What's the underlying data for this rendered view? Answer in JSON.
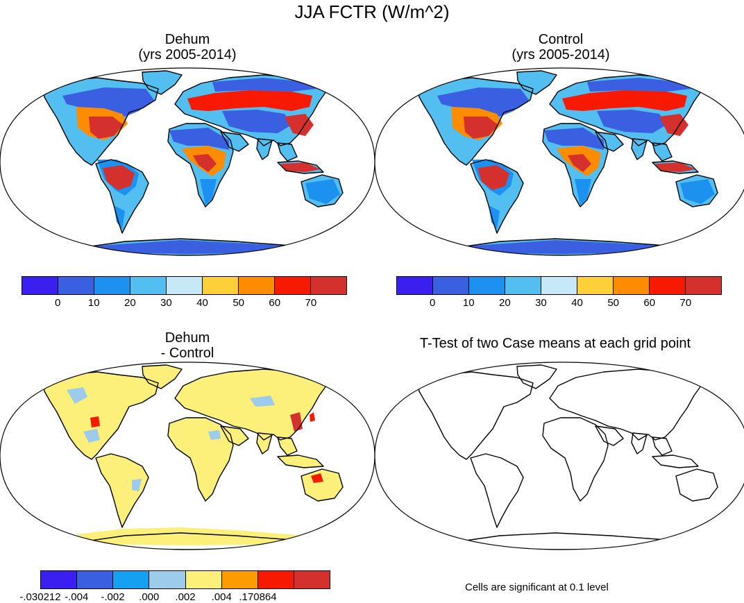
{
  "title": "JJA FCTR (W/m^2)",
  "panels": [
    {
      "id": "dehum",
      "title_line1": "Dehum",
      "title_line2": "(yrs 2005-2014)",
      "style": "absolute"
    },
    {
      "id": "control",
      "title_line1": "Control",
      "title_line2": "(yrs 2005-2014)",
      "style": "absolute"
    },
    {
      "id": "difference",
      "title_line1": "Dehum",
      "title_line2": "- Control",
      "style": "difference"
    },
    {
      "id": "ttest",
      "title_line1": "T-Test of two Case means at each grid point",
      "style": "outline"
    }
  ],
  "colorbar_absolute": {
    "colors": [
      "#3a1ff0",
      "#3a5fe0",
      "#1c91f0",
      "#52bff0",
      "#c7e8f7",
      "#fdd03a",
      "#fd8c00",
      "#f81a00",
      "#d4302e"
    ],
    "labels": [
      "0",
      "10",
      "20",
      "30",
      "40",
      "50",
      "60",
      "70"
    ]
  },
  "colorbar_difference": {
    "colors": [
      "#3a1ff0",
      "#3a5fe0",
      "#15a0f2",
      "#9ccbeb",
      "#fcef7a",
      "#fd9c00",
      "#f81a00",
      "#d4302e"
    ],
    "labels": [
      "-.030212",
      "-.004",
      "-.002",
      ".000",
      ".002",
      ".004",
      ".170864"
    ]
  },
  "footnote": "Cells are significant at 0.1 level"
}
